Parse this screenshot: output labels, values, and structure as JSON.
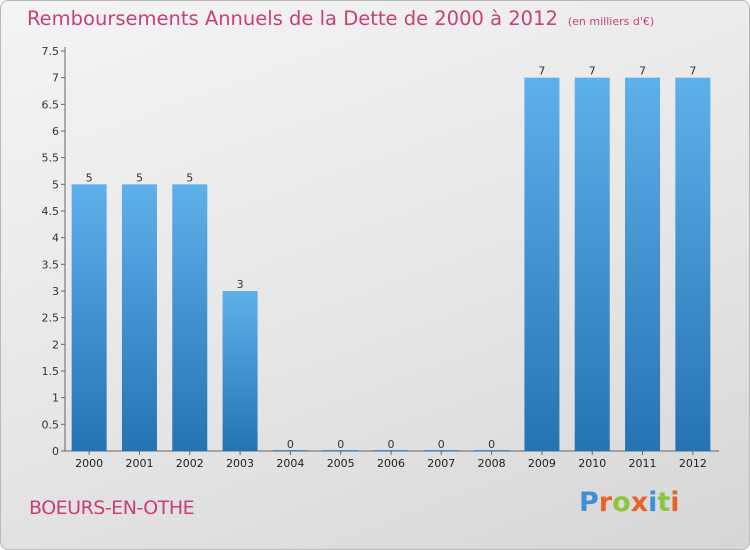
{
  "header": {
    "title": "Remboursements Annuels de la Dette de 2000 à 2012",
    "subtitle": "(en milliers d'€)"
  },
  "footer": {
    "city": "BOEURS-EN-OTHE",
    "brand": "Proxiti",
    "brand_colors": [
      "#3d8fd6",
      "#e8632b",
      "#8cc63f",
      "#e8632b",
      "#3d8fd6",
      "#8cc63f",
      "#e8632b"
    ]
  },
  "chart_data": {
    "type": "bar",
    "categories": [
      "2000",
      "2001",
      "2002",
      "2003",
      "2004",
      "2005",
      "2006",
      "2007",
      "2008",
      "2009",
      "2010",
      "2011",
      "2012"
    ],
    "values": [
      5,
      5,
      5,
      3,
      0,
      0,
      0,
      0,
      0,
      7,
      7,
      7,
      7
    ],
    "data_labels": [
      "5",
      "5",
      "5",
      "3",
      "0",
      "0",
      "0",
      "0",
      "0",
      "7",
      "7",
      "7",
      "7"
    ],
    "y_ticks": [
      {
        "value": 0,
        "label": "0"
      },
      {
        "value": 0.5,
        "label": "0.5"
      },
      {
        "value": 1,
        "label": "1"
      },
      {
        "value": 1.5,
        "label": "1.5"
      },
      {
        "value": 2,
        "label": "2"
      },
      {
        "value": 2.5,
        "label": "2.5"
      },
      {
        "value": 3,
        "label": "3"
      },
      {
        "value": 3.5,
        "label": "3.5"
      },
      {
        "value": 4,
        "label": "4"
      },
      {
        "value": 4.5,
        "label": "4.5"
      },
      {
        "value": 5,
        "label": "5"
      },
      {
        "value": 5.5,
        "label": "5.5"
      },
      {
        "value": 6,
        "label": "6"
      },
      {
        "value": 6.5,
        "label": "6.5"
      },
      {
        "value": 7,
        "label": "7"
      },
      {
        "value": 7.5,
        "label": "7.5"
      }
    ],
    "ylim": [
      0,
      7.5
    ],
    "bar_color": "#3b8fd3",
    "grid": false
  }
}
